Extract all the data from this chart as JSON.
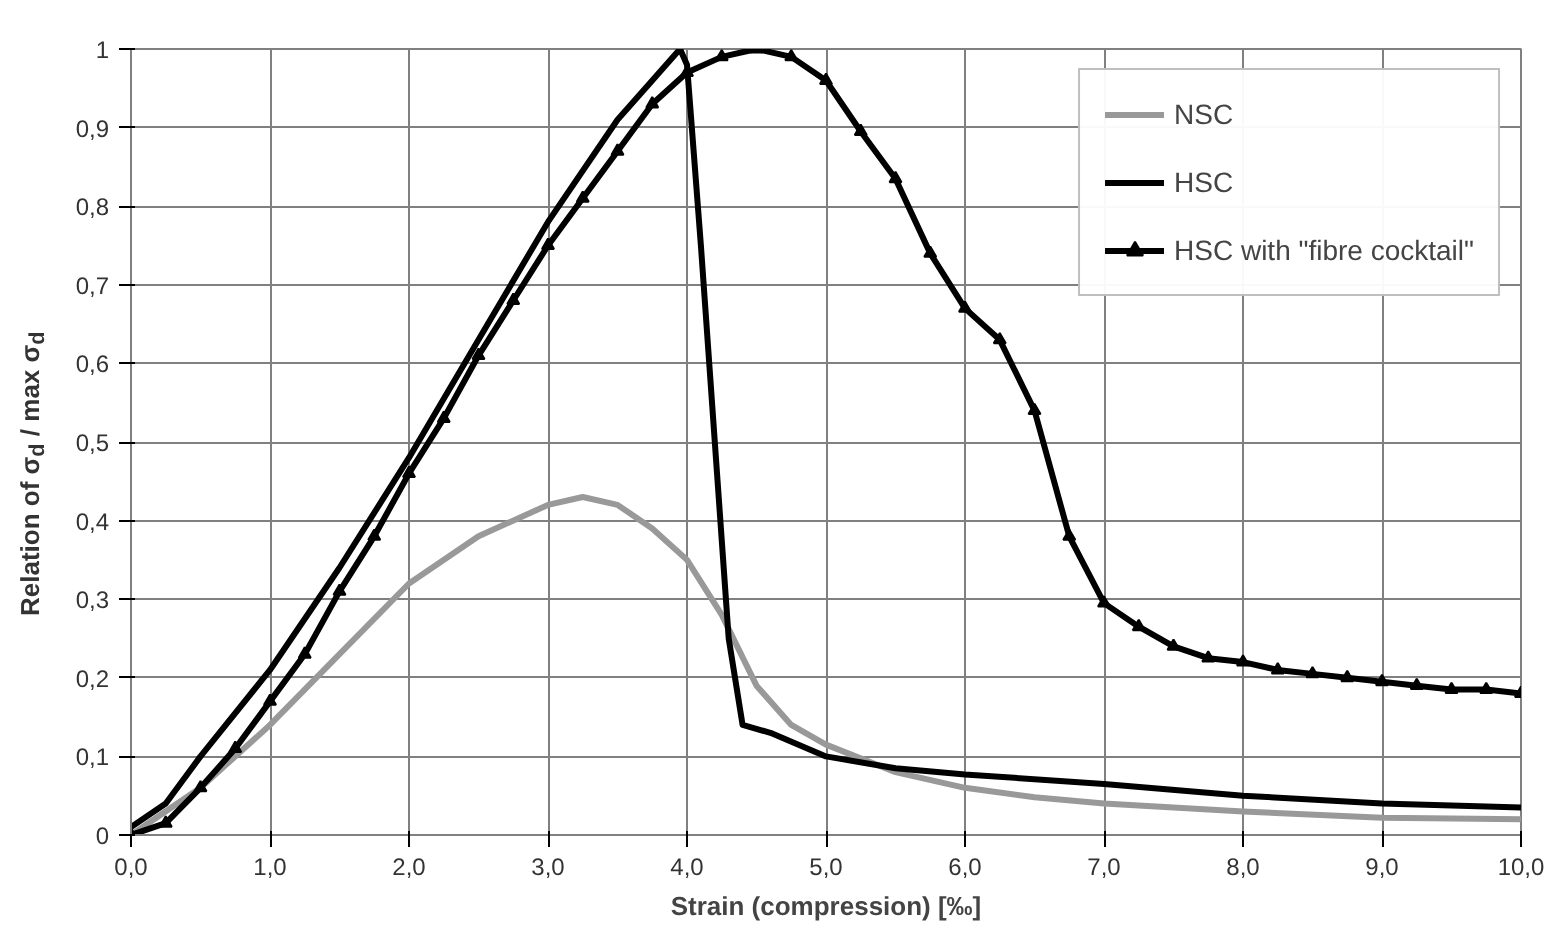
{
  "chart_data": {
    "type": "line",
    "xlabel": "Strain (compression) [‰]",
    "ylabel": "Relation of σ$_{d}$ / max σ$_{d}$",
    "xlim": [
      0,
      10
    ],
    "ylim": [
      0,
      1
    ],
    "xticks": [
      {
        "value": 0,
        "label": "0,0"
      },
      {
        "value": 1,
        "label": "1,0"
      },
      {
        "value": 2,
        "label": "2,0"
      },
      {
        "value": 3,
        "label": "3,0"
      },
      {
        "value": 4,
        "label": "4,0"
      },
      {
        "value": 5,
        "label": "5,0"
      },
      {
        "value": 6,
        "label": "6,0"
      },
      {
        "value": 7,
        "label": "7,0"
      },
      {
        "value": 8,
        "label": "8,0"
      },
      {
        "value": 9,
        "label": "9,0"
      },
      {
        "value": 10,
        "label": "10,0"
      }
    ],
    "yticks": [
      0,
      {
        "value": 0.1,
        "label": "0,1"
      },
      {
        "value": 0.2,
        "label": "0,2"
      },
      {
        "value": 0.3,
        "label": "0,3"
      },
      {
        "value": 0.4,
        "label": "0,4"
      },
      {
        "value": 0.5,
        "label": "0,5"
      },
      {
        "value": 0.6,
        "label": "0,6"
      },
      {
        "value": 0.7,
        "label": "0,7"
      },
      {
        "value": 0.8,
        "label": "0,8"
      },
      {
        "value": 0.9,
        "label": "0,9"
      },
      1
    ],
    "grid": true,
    "legend": "top right",
    "line_style": "solid",
    "series": [
      {
        "name": "NSC",
        "color": "#999999",
        "marker": "none",
        "x": [
          0,
          0.5,
          1.0,
          1.5,
          2.0,
          2.5,
          3.0,
          3.25,
          3.5,
          3.75,
          4.0,
          4.25,
          4.5,
          4.75,
          5.0,
          5.5,
          6.0,
          6.5,
          7.0,
          8.0,
          9.0,
          10.0
        ],
        "values": [
          0,
          0.06,
          0.14,
          0.23,
          0.32,
          0.38,
          0.42,
          0.43,
          0.42,
          0.39,
          0.35,
          0.28,
          0.19,
          0.14,
          0.115,
          0.08,
          0.06,
          0.048,
          0.04,
          0.03,
          0.022,
          0.02
        ]
      },
      {
        "name": "HSC",
        "color": "#000000",
        "marker": "none",
        "x": [
          0,
          0.25,
          0.5,
          1.0,
          1.5,
          2.0,
          2.5,
          3.0,
          3.5,
          3.75,
          3.95,
          4.0,
          4.1,
          4.2,
          4.3,
          4.4,
          4.6,
          5.0,
          5.5,
          6.0,
          7.0,
          8.0,
          9.0,
          10.0
        ],
        "values": [
          0.01,
          0.04,
          0.1,
          0.21,
          0.34,
          0.48,
          0.63,
          0.78,
          0.91,
          0.96,
          1.0,
          0.98,
          0.75,
          0.5,
          0.25,
          0.14,
          0.13,
          0.1,
          0.085,
          0.077,
          0.065,
          0.05,
          0.04,
          0.035
        ]
      },
      {
        "name": "HSC with \"fibre cocktail\"",
        "color": "#000000",
        "marker": "triangle",
        "x": [
          0,
          0.25,
          0.5,
          0.75,
          1.0,
          1.25,
          1.5,
          1.75,
          2.0,
          2.25,
          2.5,
          2.75,
          3.0,
          3.25,
          3.5,
          3.75,
          4.0,
          4.25,
          4.5,
          4.75,
          5.0,
          5.25,
          5.5,
          5.75,
          6.0,
          6.25,
          6.5,
          6.75,
          7.0,
          7.25,
          7.5,
          7.75,
          8.0,
          8.25,
          8.5,
          8.75,
          9.0,
          9.25,
          9.5,
          9.75,
          10.0
        ],
        "values": [
          0,
          0.015,
          0.06,
          0.11,
          0.17,
          0.23,
          0.31,
          0.38,
          0.46,
          0.53,
          0.61,
          0.68,
          0.75,
          0.81,
          0.87,
          0.93,
          0.97,
          0.99,
          1.0,
          0.99,
          0.96,
          0.895,
          0.835,
          0.74,
          0.67,
          0.63,
          0.54,
          0.38,
          0.295,
          0.265,
          0.24,
          0.225,
          0.22,
          0.21,
          0.205,
          0.2,
          0.195,
          0.19,
          0.185,
          0.185,
          0.18
        ]
      }
    ]
  }
}
